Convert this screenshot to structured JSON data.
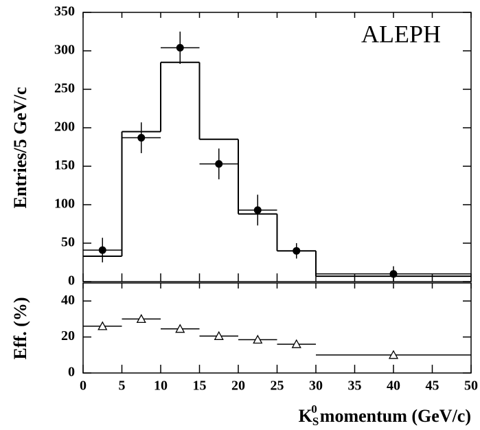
{
  "chart_data": [
    {
      "type": "histogram",
      "ylabel": "Entries/5 GeV/c",
      "annotation": "ALEPH",
      "bins": [
        0,
        5,
        10,
        15,
        20,
        25,
        30,
        50
      ],
      "counts": [
        33,
        195,
        285,
        185,
        88,
        40,
        7
      ],
      "points": {
        "x": [
          2.5,
          7.5,
          12.5,
          17.5,
          22.5,
          27.5,
          40
        ],
        "values": [
          41,
          187,
          304,
          153,
          93,
          40,
          10
        ],
        "errors": [
          16,
          20,
          21,
          20,
          20,
          10,
          10
        ]
      },
      "color": "#000000",
      "xlim": [
        0,
        50
      ],
      "ylim": [
        0,
        350
      ],
      "yticks": [
        0,
        50,
        100,
        150,
        200,
        250,
        300,
        350
      ]
    },
    {
      "type": "scatter",
      "ylabel": "Eff. (%)",
      "xlabel": {
        "main": "K",
        "sub": "S",
        "sup": "0",
        "rest": "momentum (GeV/c)"
      },
      "bins": [
        0,
        5,
        10,
        15,
        20,
        25,
        30,
        50
      ],
      "x": [
        2.5,
        7.5,
        12.5,
        17.5,
        22.5,
        27.5,
        40
      ],
      "values": [
        26,
        30,
        24.5,
        20.5,
        18.5,
        16,
        10
      ],
      "color": "#000000",
      "xlim": [
        0,
        50
      ],
      "xticks": [
        0,
        5,
        10,
        15,
        20,
        25,
        30,
        35,
        40,
        45,
        50
      ],
      "ylim": [
        0,
        50
      ],
      "yticks": [
        0,
        20,
        40
      ]
    }
  ]
}
